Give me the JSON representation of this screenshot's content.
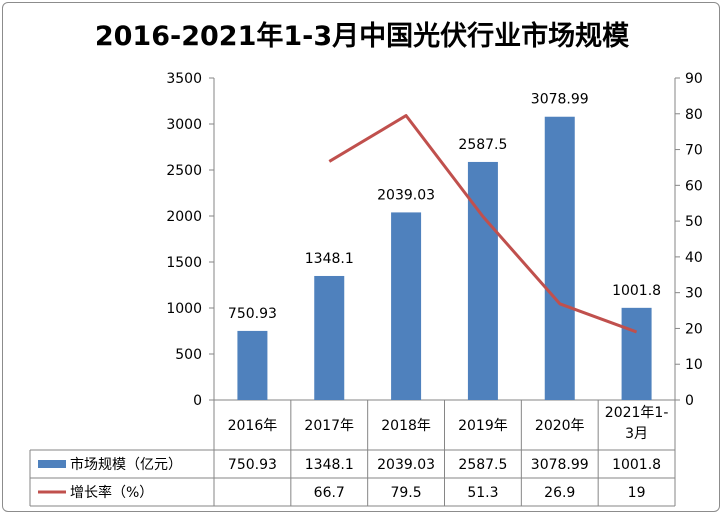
{
  "chart_data": {
    "type": "bar",
    "title": "2016-2021年1-3月中国光伏行业市场规模",
    "categories": [
      "2016年",
      "2017年",
      "2018年",
      "2019年",
      "2020年",
      "2021年1-3月"
    ],
    "series": [
      {
        "name": "市场规模（亿元）",
        "type": "bar",
        "axis": "left",
        "color": "#4f81bd",
        "values": [
          750.93,
          1348.1,
          2039.03,
          2587.5,
          3078.99,
          1001.8
        ],
        "labels": [
          "750.93",
          "1348.1",
          "2039.03",
          "2587.5",
          "3078.99",
          "1001.8"
        ]
      },
      {
        "name": "增长率（%）",
        "type": "line",
        "axis": "right",
        "color": "#c0504d",
        "values": [
          null,
          66.7,
          79.5,
          51.3,
          26.9,
          19
        ],
        "labels": [
          "",
          "66.7",
          "79.5",
          "51.3",
          "26.9",
          "19"
        ]
      }
    ],
    "y_left": {
      "min": 0,
      "max": 3500,
      "step": 500,
      "ticks": [
        "0",
        "500",
        "1000",
        "1500",
        "2000",
        "2500",
        "3000",
        "3500"
      ]
    },
    "y_right": {
      "min": 0,
      "max": 90,
      "step": 10,
      "ticks": [
        "0",
        "10",
        "20",
        "30",
        "40",
        "50",
        "60",
        "70",
        "80",
        "90"
      ]
    },
    "grid": false,
    "legend": "data-table-bottom"
  }
}
